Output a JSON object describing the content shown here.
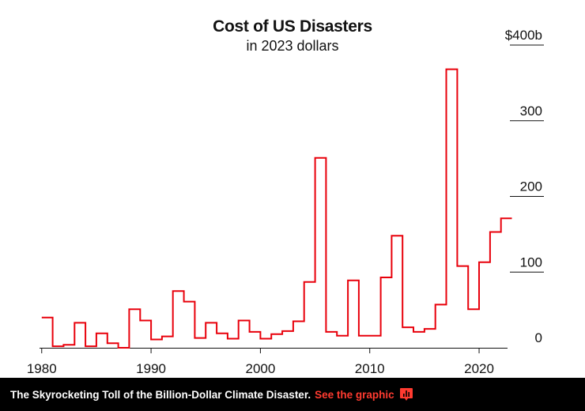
{
  "chart_data": {
    "type": "line",
    "style": "step",
    "title": "Cost of US Disasters",
    "subtitle": "in 2023 dollars",
    "xlabel": "",
    "ylabel": "",
    "xlim": [
      1979.8,
      2022.6
    ],
    "ylim": [
      0,
      400
    ],
    "x_ticks": [
      1980,
      1990,
      2000,
      2010,
      2020
    ],
    "x_tick_labels": [
      "1980",
      "1990",
      "2000",
      "2010",
      "2020"
    ],
    "y_ticks": [
      0,
      100,
      200,
      300,
      400
    ],
    "y_tick_labels": [
      "0",
      "100",
      "200",
      "300",
      "$400b"
    ],
    "series": [
      {
        "name": "Cost of US Disasters",
        "color": "#e8000b",
        "x": [
          1980,
          1981,
          1982,
          1983,
          1984,
          1985,
          1986,
          1987,
          1988,
          1989,
          1990,
          1991,
          1992,
          1993,
          1994,
          1995,
          1996,
          1997,
          1998,
          1999,
          2000,
          2001,
          2002,
          2003,
          2004,
          2005,
          2006,
          2007,
          2008,
          2009,
          2010,
          2011,
          2012,
          2013,
          2014,
          2015,
          2016,
          2017,
          2018,
          2019,
          2020,
          2021,
          2022
        ],
        "values": [
          40,
          2,
          4,
          33,
          2,
          19,
          6,
          0,
          51,
          36,
          11,
          15,
          75,
          61,
          13,
          33,
          19,
          12,
          36,
          21,
          12,
          18,
          22,
          35,
          87,
          251,
          21,
          16,
          89,
          16,
          16,
          93,
          148,
          27,
          21,
          25,
          57,
          368,
          108,
          51,
          113,
          153,
          171
        ]
      }
    ]
  },
  "footer": {
    "headline": "The Skyrocketing Toll of the Billion-Dollar Climate Disaster.",
    "link": "See the graphic",
    "icon": "bar-chart-icon",
    "link_color": "#ff3b30"
  }
}
